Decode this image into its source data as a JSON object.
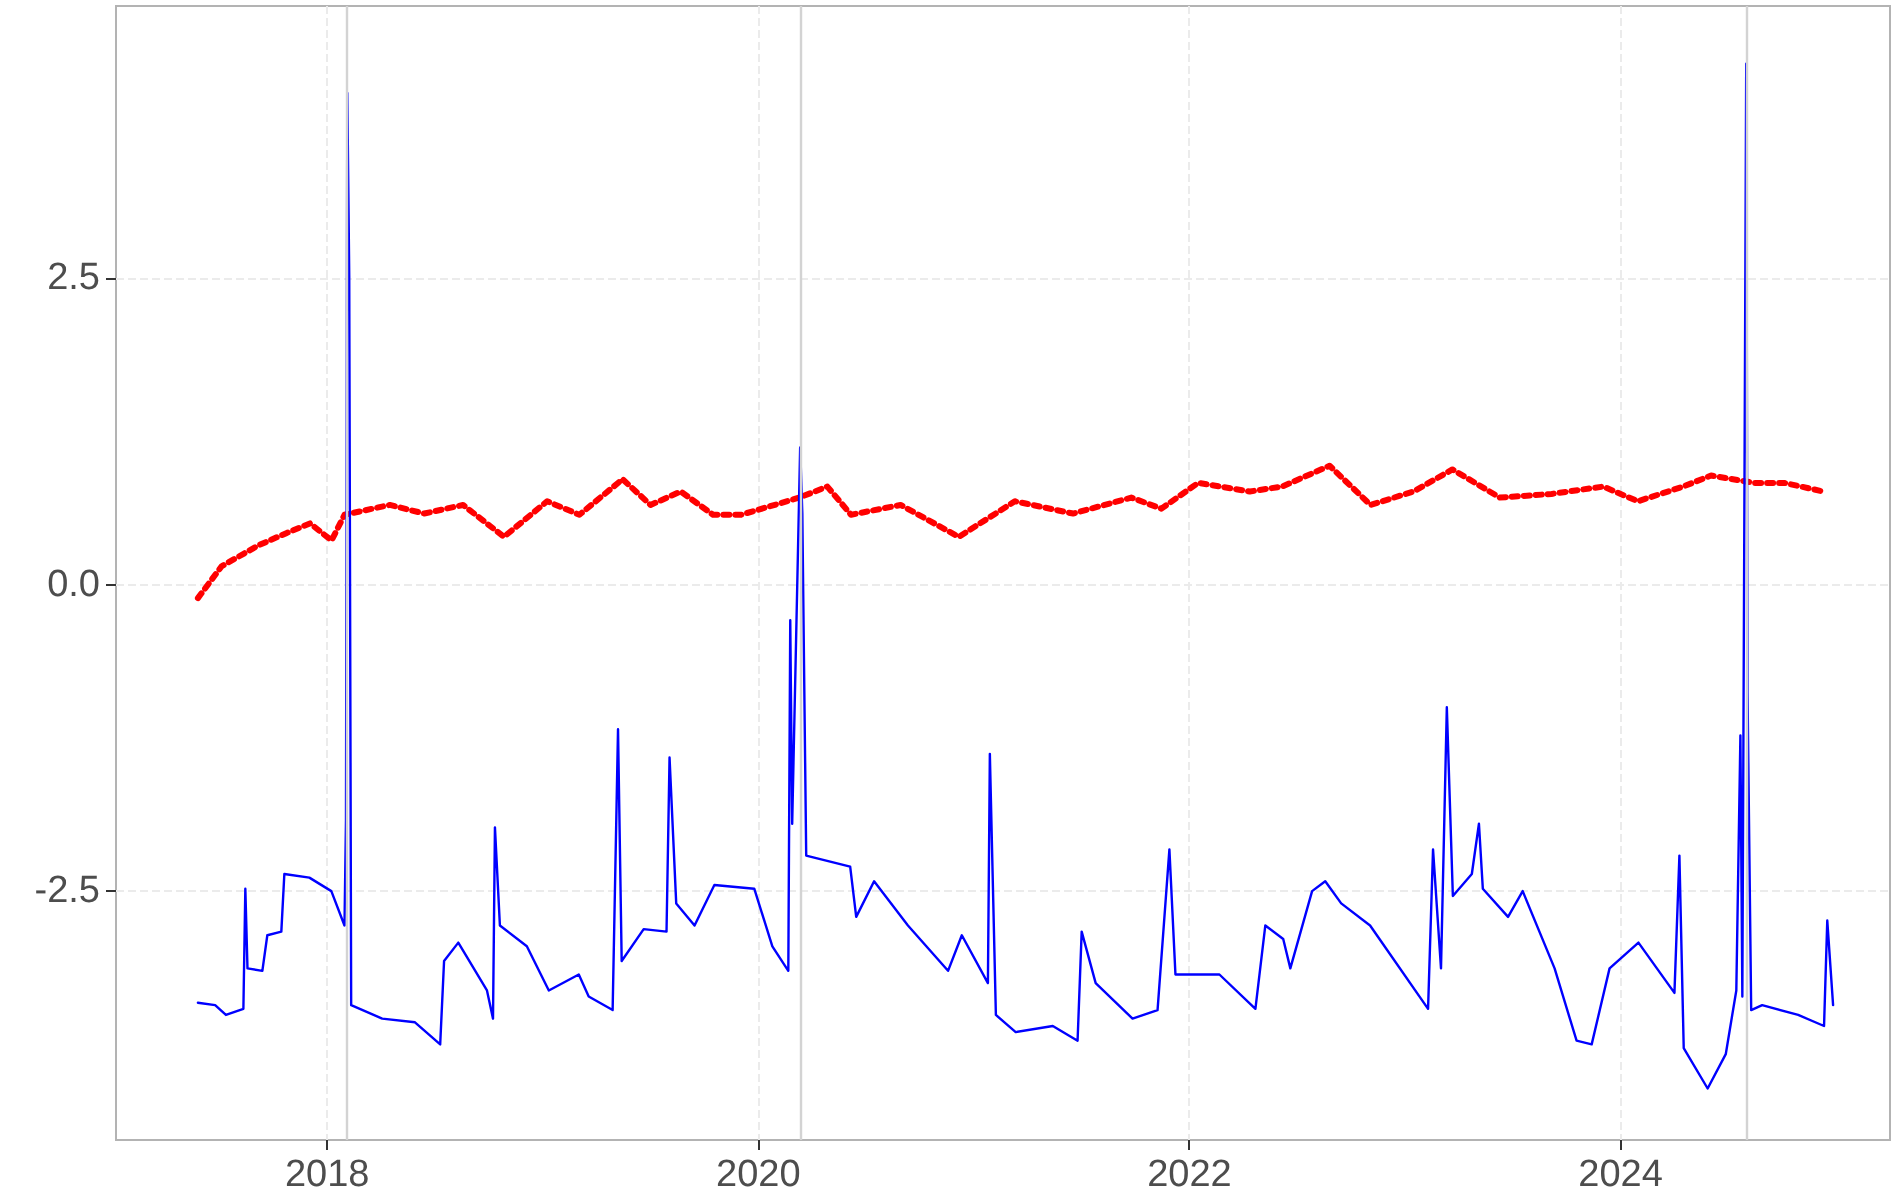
{
  "chart_data": {
    "type": "line",
    "xlim": [
      2017.02,
      2025.25
    ],
    "xticks": [
      2018,
      2020,
      2022,
      2024
    ],
    "ylim": [
      -4.53,
      4.72
    ],
    "yticks": [
      {
        "value": 2.5,
        "label": "2.5"
      },
      {
        "value": 0,
        "label": "0.0"
      },
      {
        "value": -2.5,
        "label": "-2.5"
      }
    ],
    "grid": true,
    "marker": "none",
    "series": [
      {
        "color": "#ff0000",
        "line_style": "dotted",
        "x": [
          2017.4,
          2017.51,
          2017.68,
          2017.81,
          2017.92,
          2018.02,
          2018.08,
          2018.29,
          2018.45,
          2018.63,
          2018.82,
          2019.02,
          2019.17,
          2019.37,
          2019.5,
          2019.64,
          2019.79,
          2019.92,
          2020.19,
          2020.32,
          2020.43,
          2020.66,
          2020.93,
          2021.19,
          2021.46,
          2021.73,
          2021.87,
          2022.04,
          2022.28,
          2022.43,
          2022.65,
          2022.84,
          2023.04,
          2023.22,
          2023.44,
          2023.68,
          2023.92,
          2024.08,
          2024.29,
          2024.42,
          2024.62,
          2024.76,
          2024.94
        ],
        "values": [
          -0.11,
          0.15,
          0.32,
          0.42,
          0.5,
          0.36,
          0.57,
          0.65,
          0.58,
          0.65,
          0.39,
          0.68,
          0.57,
          0.86,
          0.65,
          0.76,
          0.57,
          0.57,
          0.71,
          0.8,
          0.57,
          0.65,
          0.39,
          0.68,
          0.58,
          0.71,
          0.62,
          0.83,
          0.76,
          0.8,
          0.97,
          0.65,
          0.76,
          0.94,
          0.71,
          0.74,
          0.8,
          0.68,
          0.8,
          0.89,
          0.83,
          0.83,
          0.76
        ]
      },
      {
        "color": "#0000ff",
        "line_style": "solid",
        "x": [
          2017.4,
          2017.48,
          2017.53,
          2017.611,
          2017.62,
          2017.63,
          2017.699,
          2017.722,
          2017.787,
          2017.801,
          2017.917,
          2018.019,
          2018.08,
          2018.087,
          2018.093,
          2018.102,
          2018.111,
          2018.255,
          2018.407,
          2018.524,
          2018.542,
          2018.608,
          2018.741,
          2018.769,
          2018.778,
          2018.801,
          2018.926,
          2019.028,
          2019.167,
          2019.213,
          2019.324,
          2019.349,
          2019.366,
          2019.468,
          2019.574,
          2019.588,
          2019.619,
          2019.704,
          2019.796,
          2019.981,
          2020.065,
          2020.139,
          2020.148,
          2020.157,
          2020.194,
          2020.204,
          2020.222,
          2020.426,
          2020.454,
          2020.537,
          2020.694,
          2020.88,
          2020.944,
          2021.065,
          2021.074,
          2021.102,
          2021.194,
          2021.366,
          2021.481,
          2021.5,
          2021.565,
          2021.736,
          2021.852,
          2021.907,
          2021.935,
          2022.139,
          2022.306,
          2022.352,
          2022.435,
          2022.468,
          2022.569,
          2022.63,
          2022.704,
          2022.838,
          2023.107,
          2023.13,
          2023.167,
          2023.194,
          2023.222,
          2023.31,
          2023.343,
          2023.361,
          2023.478,
          2023.546,
          2023.694,
          2023.796,
          2023.866,
          2023.949,
          2024.083,
          2024.25,
          2024.273,
          2024.293,
          2024.404,
          2024.488,
          2024.537,
          2024.556,
          2024.565,
          2024.583,
          2024.589,
          2024.606,
          2024.657,
          2024.824,
          2024.944,
          2024.959,
          2024.986
        ],
        "values": [
          -3.41,
          -3.43,
          -3.51,
          -3.46,
          -2.48,
          -3.13,
          -3.15,
          -2.86,
          -2.83,
          -2.36,
          -2.39,
          -2.5,
          -2.78,
          -1.92,
          4.01,
          2.52,
          -3.43,
          -3.54,
          -3.57,
          -3.75,
          -3.07,
          -2.92,
          -3.31,
          -3.54,
          -1.98,
          -2.78,
          -2.95,
          -3.31,
          -3.18,
          -3.36,
          -3.47,
          -1.18,
          -3.07,
          -2.81,
          -2.83,
          -1.41,
          -2.6,
          -2.78,
          -2.45,
          -2.48,
          -2.95,
          -3.15,
          -0.29,
          -1.95,
          1.12,
          0.58,
          -2.21,
          -2.3,
          -2.71,
          -2.42,
          -2.78,
          -3.15,
          -2.86,
          -3.25,
          -1.38,
          -3.51,
          -3.65,
          -3.6,
          -3.72,
          -2.83,
          -3.25,
          -3.54,
          -3.47,
          -2.16,
          -3.18,
          -3.18,
          -3.46,
          -2.78,
          -2.89,
          -3.13,
          -2.5,
          -2.42,
          -2.6,
          -2.78,
          -3.46,
          -2.16,
          -3.13,
          -1.0,
          -2.54,
          -2.36,
          -1.95,
          -2.48,
          -2.71,
          -2.5,
          -3.13,
          -3.72,
          -3.75,
          -3.13,
          -2.92,
          -3.33,
          -2.21,
          -3.78,
          -4.11,
          -3.83,
          -3.31,
          -1.23,
          -3.36,
          4.25,
          -0.88,
          -3.47,
          -3.43,
          -3.51,
          -3.6,
          -2.74,
          -3.43
        ]
      }
    ],
    "ref_lines": [
      {
        "axis": "x",
        "value": 2018.09,
        "color": "#d3d3d3"
      },
      {
        "axis": "x",
        "value": 2020.2,
        "color": "#d3d3d3"
      },
      {
        "axis": "x",
        "value": 2024.58,
        "color": "#d3d3d3"
      }
    ]
  }
}
